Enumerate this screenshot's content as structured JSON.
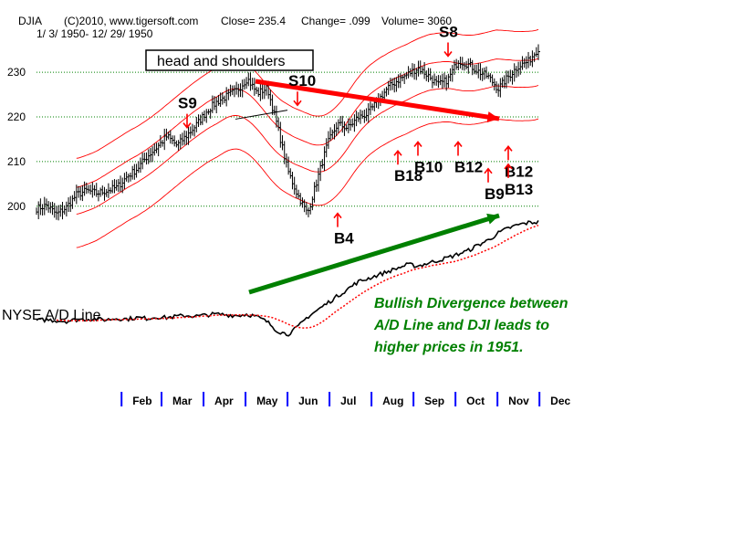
{
  "header": {
    "symbol": "DJIA",
    "source": "(C)2010, www.tigersoft.com",
    "close_text": "Close=  235.4",
    "change_text": "Change= .099",
    "volume_text": "Volume= 3060",
    "date_range": "1/ 3/ 1950- 12/ 29/ 1950"
  },
  "chart_data": {
    "type": "line",
    "title": "DJIA",
    "subtitle": "1/ 3/ 1950- 12/ 29/ 1950",
    "ylabel": "",
    "xlabel": "",
    "ylim": [
      193,
      238
    ],
    "yticks": [
      200,
      210,
      220,
      230
    ],
    "ytick_labels": [
      "200",
      "210",
      "220",
      "230"
    ],
    "months": [
      "Feb",
      "Mar",
      "Apr",
      "May",
      "Jun",
      "Jul",
      "Aug",
      "Sep",
      "Oct",
      "Nov",
      "Dec"
    ],
    "month_starts": [
      22,
      42,
      63,
      84,
      105,
      126,
      147,
      168,
      189,
      210,
      231
    ],
    "series": [
      {
        "name": "DJIA",
        "weekly_close": [
          199.5,
          200.2,
          198.2,
          199.8,
          202.6,
          203.5,
          202.9,
          203.5,
          204.2,
          206.6,
          208.3,
          211.1,
          213.2,
          215.7,
          213.6,
          215.9,
          218.4,
          221.4,
          223.4,
          224.7,
          226.0,
          228.6,
          225.3,
          226.5,
          218.0,
          208.2,
          202.6,
          198.3,
          206.2,
          214.0,
          218.4,
          217.5,
          219.8,
          220.7,
          223.6,
          226.5,
          228.2,
          229.6,
          231.0,
          229.3,
          227.1,
          228.4,
          232.6,
          231.8,
          230.2,
          229.0,
          226.3,
          229.0,
          231.4,
          232.4,
          235.4
        ]
      },
      {
        "name": "NYSE A/D Line",
        "values": [
          0,
          1,
          0,
          -1,
          1,
          2,
          2,
          1,
          3,
          2,
          4,
          3,
          5,
          4,
          6,
          7,
          6,
          8,
          9,
          8,
          7,
          9,
          5,
          -2,
          -15,
          -20,
          -10,
          5,
          15,
          25,
          35,
          45,
          55,
          60,
          65,
          70,
          75,
          80,
          78,
          82,
          86,
          90,
          95,
          100,
          108,
          115,
          125,
          132,
          137,
          140,
          141
        ]
      }
    ],
    "signals": [
      {
        "label": "S9",
        "direction": "down",
        "week": 15,
        "price": 217
      },
      {
        "label": "S10",
        "direction": "down",
        "week": 26,
        "price": 222
      },
      {
        "label": "S8",
        "direction": "down",
        "week": 41,
        "price": 233
      },
      {
        "label": "B4",
        "direction": "up",
        "week": 30,
        "price": 199
      },
      {
        "label": "B18",
        "direction": "up",
        "week": 36,
        "price": 213
      },
      {
        "label": "B10",
        "direction": "up",
        "week": 38,
        "price": 215
      },
      {
        "label": "B12",
        "direction": "up",
        "week": 42,
        "price": 215
      },
      {
        "label": "B12",
        "direction": "up",
        "week": 47,
        "price": 214
      },
      {
        "label": "B9",
        "direction": "up",
        "week": 45,
        "price": 209
      },
      {
        "label": "B13",
        "direction": "up",
        "week": 47,
        "price": 210
      }
    ],
    "annotations": {
      "head_and_shoulders_label": "head and shoulders",
      "ad_line_label": "NYSE A/D Line",
      "divergence_note_lines": [
        "Bullish Divergence between",
        "A/D Line and DJI leads to",
        "higher prices in 1951."
      ]
    }
  },
  "colors": {
    "price_bars": "#000000",
    "bands": "#ff0000",
    "grid": "#008000",
    "signal_arrow": "#ff0000",
    "trend_arrow_down": "#ff0000",
    "trend_arrow_up": "#008000",
    "month_tick": "#0000ff",
    "note_text": "#008000"
  }
}
